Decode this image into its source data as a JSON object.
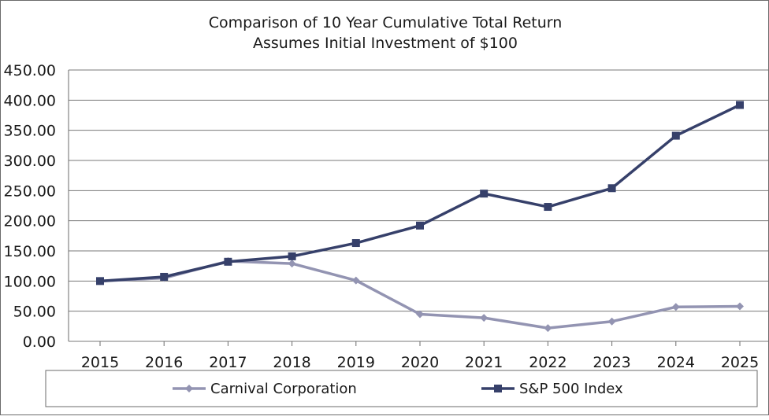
{
  "chart_data": {
    "type": "line",
    "title": "Comparison of 10 Year Cumulative Total Return",
    "subtitle": "Assumes Initial Investment of $100",
    "xlabel": "",
    "ylabel": "",
    "categories": [
      "2015",
      "2016",
      "2017",
      "2018",
      "2019",
      "2020",
      "2021",
      "2022",
      "2023",
      "2024",
      "2025"
    ],
    "ylim": [
      0,
      450
    ],
    "y_ticks": [
      "0.00",
      "50.00",
      "100.00",
      "150.00",
      "200.00",
      "250.00",
      "300.00",
      "350.00",
      "400.00",
      "450.00"
    ],
    "grid": "horizontal",
    "legend_position": "bottom",
    "series": [
      {
        "name": "Carnival Corporation",
        "marker": "diamond",
        "color": "#9394b2",
        "values": [
          100,
          105,
          133,
          129,
          101,
          45,
          39,
          22,
          33,
          57,
          58
        ]
      },
      {
        "name": "S&P 500 Index",
        "marker": "square",
        "color": "#36406a",
        "values": [
          100,
          107,
          132,
          141,
          163,
          192,
          245,
          223,
          254,
          341,
          392
        ]
      }
    ]
  }
}
